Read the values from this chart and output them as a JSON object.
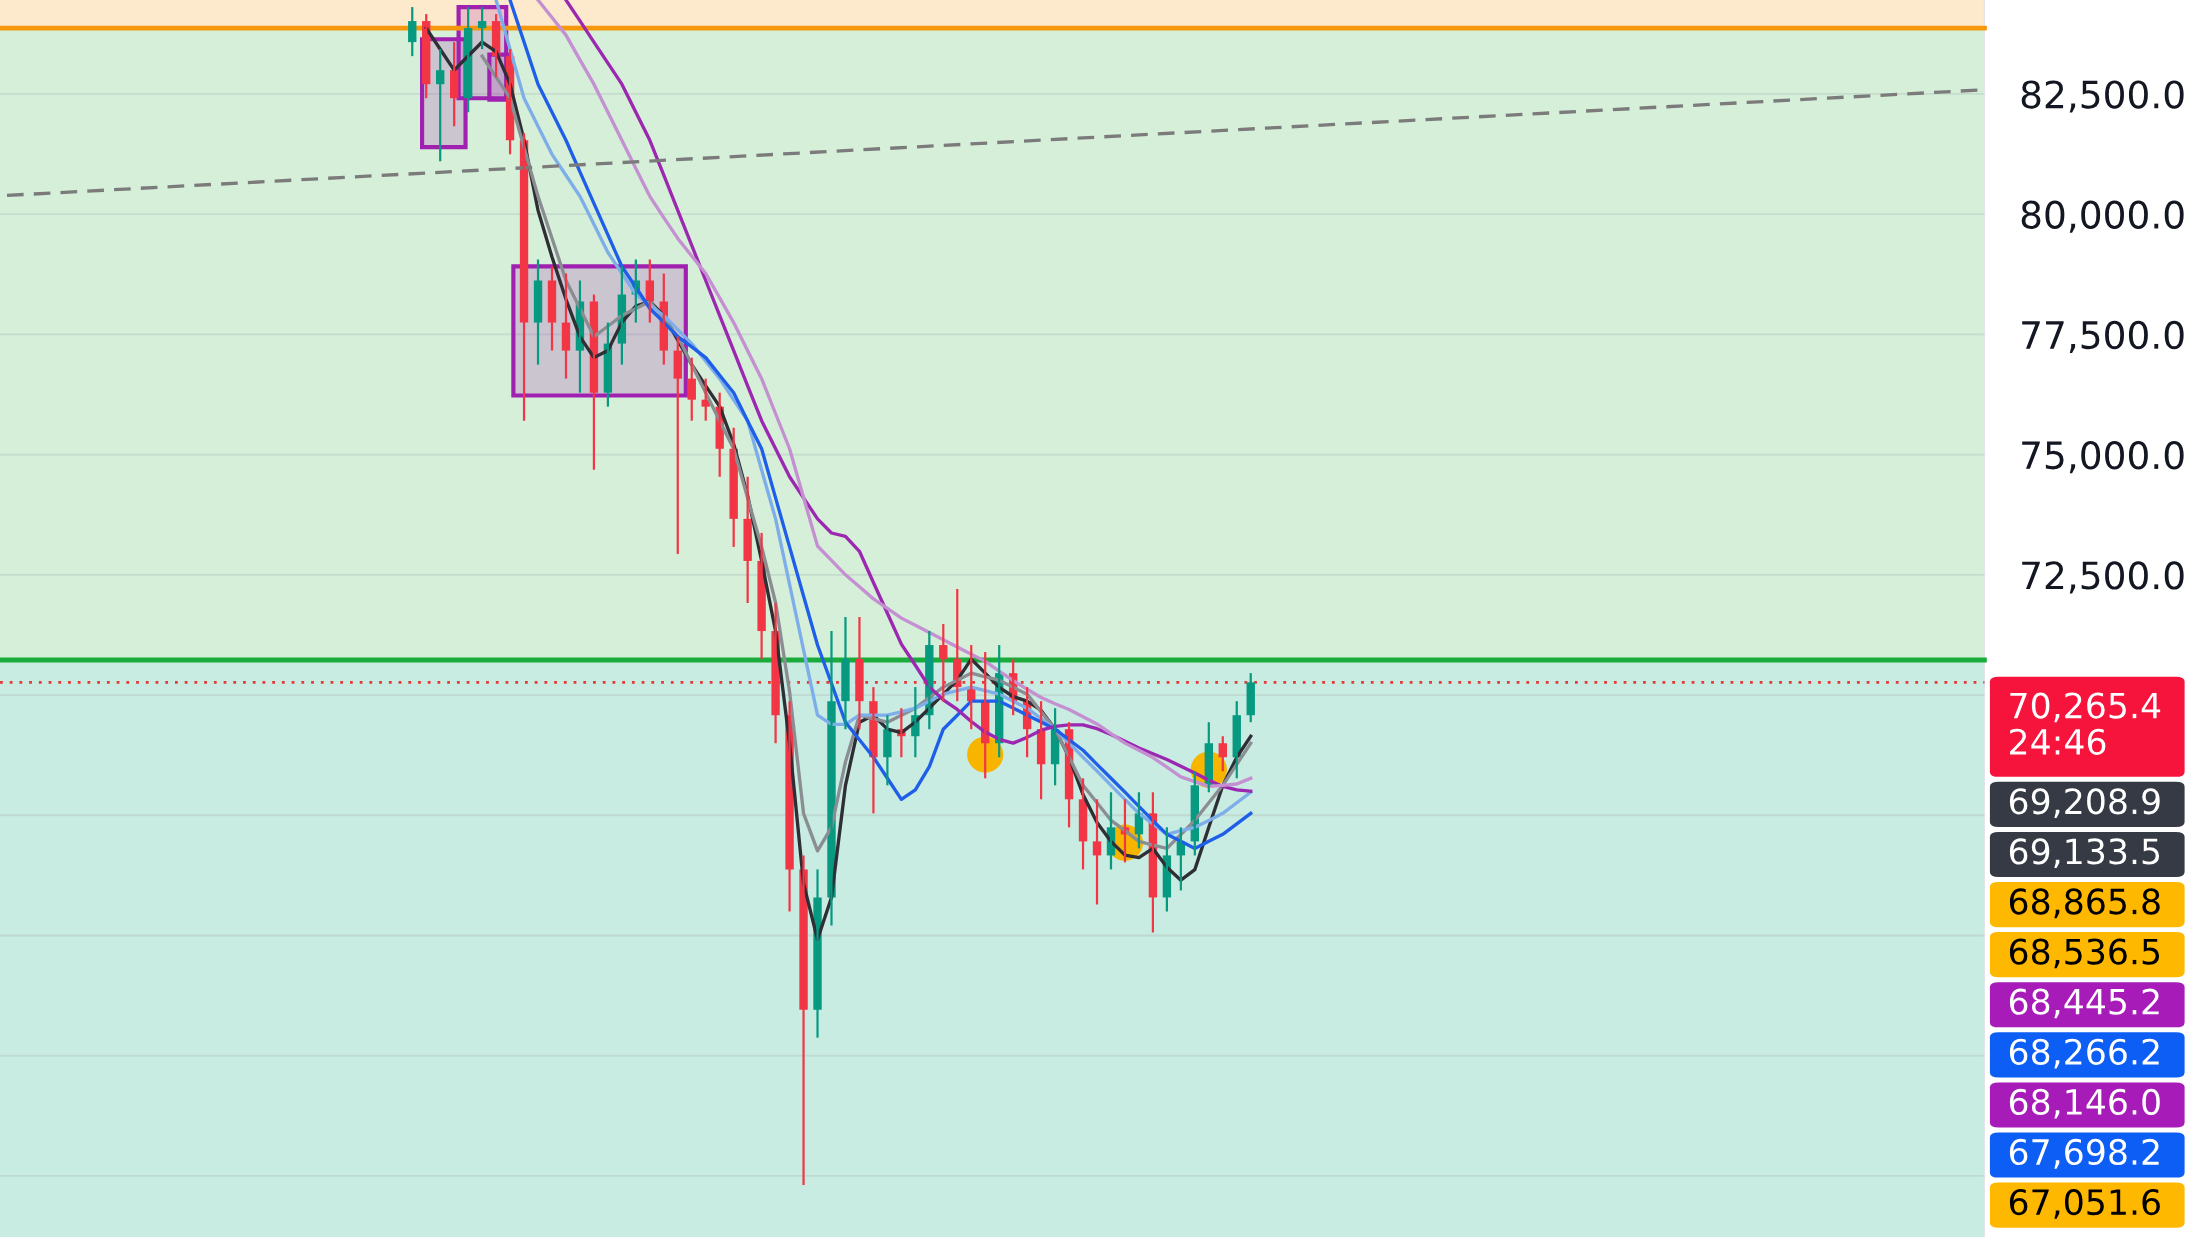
{
  "chart_data": {
    "type": "candlestick",
    "categories": [
      null,
      null,
      null,
      null,
      null,
      null,
      null,
      null,
      null,
      null,
      null,
      null,
      null,
      null,
      null,
      null,
      null,
      null,
      null,
      null,
      null,
      null,
      null,
      null,
      null,
      null,
      null,
      null,
      null,
      null,
      null,
      null,
      null,
      null,
      null,
      null,
      null,
      null,
      null,
      null,
      null,
      null,
      null,
      null,
      null,
      null,
      null,
      null,
      null,
      null,
      null,
      null,
      null,
      null,
      null,
      null,
      null,
      null,
      null,
      null,
      null,
      null,
      null,
      null,
      null,
      null,
      null,
      null,
      null,
      null,
      null,
      null,
      null,
      null,
      null,
      null,
      null,
      null,
      null,
      null,
      null,
      null,
      null,
      null,
      null,
      null,
      null,
      null,
      null,
      null,
      null,
      null,
      null,
      null,
      null,
      null,
      null,
      null,
      null,
      null,
      null,
      null,
      null,
      null,
      null,
      null,
      null,
      null,
      null,
      null,
      null,
      null,
      null,
      null,
      null,
      null,
      null,
      null,
      null,
      null,
      null,
      null,
      null,
      null,
      null,
      null,
      null,
      null,
      null,
      null,
      null,
      null,
      null,
      null,
      null,
      null,
      null,
      null,
      null,
      null,
      null,
      null
    ],
    "ohlc": [
      null,
      null,
      null,
      null,
      null,
      null,
      null,
      null,
      null,
      null,
      null,
      null,
      null,
      null,
      null,
      null,
      null,
      null,
      null,
      null,
      null,
      null,
      null,
      null,
      null,
      null,
      null,
      null,
      null,
      [
        83578,
        84307,
        83287,
        84016
      ],
      [
        84016,
        84161,
        82412,
        82703
      ],
      [
        82703,
        83433,
        81100,
        82995
      ],
      [
        82995,
        83578,
        81829,
        82412
      ],
      [
        82412,
        84307,
        82120,
        83870
      ],
      [
        83870,
        84307,
        83433,
        84016
      ],
      [
        84016,
        84161,
        82849,
        83287
      ],
      [
        83287,
        83433,
        81245,
        81537
      ],
      [
        81537,
        81683,
        75705,
        77746
      ],
      [
        77746,
        79058,
        76871,
        78621
      ],
      [
        78621,
        78913,
        77163,
        77746
      ],
      [
        77746,
        78767,
        76580,
        77163
      ],
      [
        77163,
        78621,
        76288,
        78184
      ],
      [
        78184,
        78329,
        74685,
        76288
      ],
      [
        76288,
        77746,
        75997,
        77309
      ],
      [
        77309,
        78913,
        76871,
        78329
      ],
      [
        78329,
        79058,
        77746,
        78621
      ],
      [
        78621,
        79058,
        77746,
        78184
      ],
      [
        78184,
        78767,
        76871,
        77163
      ],
      [
        77163,
        77455,
        72935,
        76580
      ],
      [
        76580,
        77017,
        75705,
        76142
      ],
      [
        76142,
        76580,
        75705,
        75997
      ],
      [
        75997,
        76288,
        74539,
        75122
      ],
      [
        75122,
        75559,
        73081,
        73664
      ],
      [
        73664,
        74539,
        71914,
        72789
      ],
      [
        72789,
        73372,
        70748,
        71331
      ],
      [
        71331,
        71914,
        68998,
        69581
      ],
      [
        69581,
        69873,
        65499,
        66374
      ],
      [
        66374,
        66665,
        59813,
        63458
      ],
      [
        63458,
        66374,
        62875,
        65791
      ],
      [
        65791,
        71331,
        65207,
        69873
      ],
      [
        69873,
        71623,
        69290,
        70748
      ],
      [
        70748,
        71623,
        69290,
        69873
      ],
      [
        69873,
        70165,
        67540,
        68707
      ],
      [
        68707,
        69581,
        68123,
        69290
      ],
      [
        69290,
        69727,
        68707,
        69144
      ],
      [
        69144,
        70165,
        68707,
        69581
      ],
      [
        69581,
        71331,
        69290,
        71040
      ],
      [
        71040,
        71477,
        69873,
        70748
      ],
      [
        70748,
        72206,
        69873,
        70165
      ],
      [
        70165,
        71040,
        69290,
        69873
      ],
      [
        69873,
        70894,
        68269,
        68998
      ],
      [
        68998,
        71040,
        68707,
        70456
      ],
      [
        70456,
        70748,
        69581,
        69873
      ],
      [
        69873,
        70165,
        68707,
        69290
      ],
      [
        69290,
        69873,
        67832,
        68561
      ],
      [
        68561,
        69727,
        68123,
        69290
      ],
      [
        69290,
        69435,
        67249,
        67832
      ],
      [
        67832,
        68269,
        66374,
        66957
      ],
      [
        66957,
        67832,
        65645,
        66665
      ],
      [
        66665,
        67978,
        66374,
        67249
      ],
      [
        67249,
        67832,
        66520,
        67103
      ],
      [
        67103,
        67978,
        66811,
        67540
      ],
      [
        67540,
        67978,
        65062,
        65791
      ],
      [
        65791,
        67249,
        65499,
        66665
      ],
      [
        66665,
        67249,
        65937,
        66957
      ],
      [
        66957,
        68415,
        66665,
        68123
      ],
      [
        68123,
        69435,
        67978,
        68998
      ],
      [
        68998,
        69144,
        68415,
        68707
      ],
      [
        68707,
        69873,
        68269,
        69581
      ],
      [
        69581,
        70456,
        69435,
        70265.4
      ],
      null,
      null,
      null,
      null,
      null,
      null,
      null,
      null,
      null,
      null,
      null,
      null,
      null,
      null,
      null,
      null,
      null,
      null,
      null,
      null,
      null,
      null,
      null,
      null,
      null,
      null,
      null,
      null,
      null,
      null,
      null,
      null,
      null,
      null,
      null,
      null,
      null,
      null,
      null,
      null,
      null,
      null,
      null,
      null,
      null,
      null,
      null,
      null,
      null,
      null,
      null,
      null
    ],
    "series": [
      {
        "type": "line",
        "color": "#2e2e35",
        "values": [
          null,
          null,
          null,
          null,
          null,
          null,
          null,
          null,
          null,
          null,
          null,
          null,
          null,
          null,
          null,
          null,
          null,
          null,
          null,
          null,
          null,
          null,
          null,
          null,
          null,
          null,
          null,
          null,
          null,
          null,
          83870,
          83430,
          82995,
          83290,
          83580,
          83380,
          82703,
          81537,
          80079,
          79110,
          78230,
          77455,
          77017,
          77163,
          77750,
          78090,
          78184,
          77892,
          77380,
          76871,
          76430,
          75997,
          75220,
          74150,
          72789,
          71331,
          68998,
          66082,
          64916,
          65791,
          68123,
          69435,
          69581,
          69290,
          69220,
          69440,
          69727,
          70020,
          70310,
          70748,
          70456,
          70160,
          69970,
          69873,
          69680,
          69290,
          68707,
          67930,
          67350,
          66957,
          66670,
          66620,
          66811,
          66420,
          66150,
          66370,
          67250,
          68120,
          68707,
          69144,
          null,
          null,
          null,
          null,
          null,
          null,
          null,
          null,
          null,
          null,
          null,
          null,
          null,
          null,
          null,
          null,
          null,
          null,
          null,
          null,
          null,
          null,
          null,
          null,
          null,
          null,
          null,
          null,
          null,
          null,
          null,
          null,
          null,
          null,
          null,
          null,
          null,
          null,
          null,
          null,
          null,
          null,
          null,
          null,
          null,
          null,
          null,
          null,
          null,
          null,
          null,
          null
        ]
      },
      {
        "type": "line",
        "color": "#8a8d92",
        "values": [
          null,
          null,
          null,
          null,
          null,
          null,
          null,
          null,
          null,
          null,
          null,
          null,
          null,
          null,
          null,
          null,
          null,
          null,
          null,
          null,
          null,
          null,
          null,
          null,
          null,
          null,
          null,
          null,
          null,
          null,
          null,
          null,
          null,
          null,
          83287,
          82850,
          82412,
          81390,
          80371,
          79500,
          78621,
          78040,
          77455,
          77670,
          77892,
          78040,
          78184,
          77820,
          77455,
          76870,
          76288,
          75700,
          75122,
          74100,
          73081,
          71920,
          70070,
          67540,
          66760,
          67250,
          68610,
          69581,
          69510,
          69435,
          69580,
          69727,
          69950,
          70165,
          70310,
          70456,
          70380,
          70310,
          70160,
          70019,
          69650,
          69290,
          68710,
          68123,
          67760,
          67395,
          67180,
          66957,
          66880,
          66811,
          67100,
          67395,
          67760,
          68123,
          68560,
          68998,
          null,
          null,
          null,
          null,
          null,
          null,
          null,
          null,
          null,
          null,
          null,
          null,
          null,
          null,
          null,
          null,
          null,
          null,
          null,
          null,
          null,
          null,
          null,
          null,
          null,
          null,
          null,
          null,
          null,
          null,
          null,
          null,
          null,
          null,
          null,
          null,
          null,
          null,
          null,
          null,
          null,
          null,
          null,
          null,
          null,
          null,
          null,
          null,
          null,
          null,
          null,
          null
        ]
      },
      {
        "type": "line",
        "color": "#7eaeea",
        "values": [
          null,
          null,
          null,
          null,
          null,
          null,
          null,
          null,
          null,
          null,
          null,
          null,
          null,
          null,
          null,
          null,
          null,
          null,
          null,
          null,
          null,
          null,
          null,
          null,
          null,
          null,
          null,
          null,
          null,
          null,
          null,
          null,
          null,
          null,
          null,
          84453,
          83430,
          82412,
          81830,
          81245,
          80810,
          80371,
          79790,
          79204,
          78770,
          78329,
          78110,
          77892,
          77600,
          77309,
          76940,
          76580,
          76140,
          75705,
          74680,
          73664,
          72300,
          70940,
          69581,
          69390,
          69390,
          69581,
          69581,
          69581,
          69650,
          69727,
          69870,
          70019,
          70090,
          70165,
          70090,
          70019,
          69870,
          69727,
          69510,
          69290,
          69000,
          68707,
          68420,
          68123,
          67830,
          67540,
          67320,
          67103,
          67180,
          67249,
          67390,
          67540,
          67760,
          67978,
          null,
          null,
          null,
          null,
          null,
          null,
          null,
          null,
          null,
          null,
          null,
          null,
          null,
          null,
          null,
          null,
          null,
          null,
          null,
          null,
          null,
          null,
          null,
          null,
          null,
          null,
          null,
          null,
          null,
          null,
          null,
          null,
          null,
          null,
          null,
          null,
          null,
          null,
          null,
          null,
          null,
          null,
          null,
          null,
          null,
          null,
          null,
          null,
          null,
          null,
          null,
          null
        ]
      },
      {
        "type": "line",
        "color": "#1e5ee8",
        "values": [
          null,
          null,
          null,
          null,
          null,
          null,
          null,
          null,
          null,
          null,
          null,
          null,
          null,
          null,
          null,
          null,
          null,
          null,
          null,
          null,
          null,
          null,
          null,
          null,
          null,
          null,
          null,
          null,
          null,
          null,
          null,
          null,
          null,
          null,
          null,
          null,
          84453,
          83580,
          82703,
          82120,
          81537,
          80880,
          80225,
          79570,
          78913,
          78480,
          78038,
          77750,
          77455,
          77240,
          77017,
          76650,
          76288,
          75700,
          75122,
          74100,
          73081,
          72060,
          71040,
          70240,
          69435,
          69070,
          68707,
          68270,
          67832,
          68030,
          68510,
          69290,
          69580,
          69873,
          69873,
          69873,
          69730,
          69581,
          69440,
          69290,
          69070,
          68852,
          68560,
          68269,
          67980,
          67686,
          67390,
          67103,
          66960,
          66811,
          66960,
          67103,
          67320,
          67540,
          null,
          null,
          null,
          null,
          null,
          null,
          null,
          null,
          null,
          null,
          null,
          null,
          null,
          null,
          null,
          null,
          null,
          null,
          null,
          null,
          null,
          null,
          null,
          null,
          null,
          null,
          null,
          null,
          null,
          null,
          null,
          null,
          null,
          null,
          null,
          null,
          null,
          null,
          null,
          null,
          null,
          null,
          null,
          null,
          null,
          null,
          null,
          null,
          null,
          null,
          null,
          null
        ]
      },
      {
        "type": "line",
        "color": "#9c27b0",
        "values": [
          null,
          null,
          null,
          null,
          null,
          null,
          null,
          null,
          null,
          null,
          null,
          null,
          null,
          null,
          null,
          null,
          null,
          null,
          null,
          null,
          null,
          null,
          null,
          null,
          null,
          null,
          null,
          null,
          null,
          null,
          null,
          null,
          null,
          null,
          null,
          null,
          null,
          null,
          null,
          null,
          84453,
          84020,
          83578,
          83140,
          82703,
          82120,
          81537,
          80810,
          80079,
          79350,
          78621,
          77890,
          77163,
          76430,
          75705,
          75120,
          74539,
          74100,
          73664,
          73370,
          73300,
          72990,
          72340,
          71700,
          71060,
          70620,
          70170,
          69900,
          69700,
          69450,
          69230,
          69080,
          69000,
          69120,
          69270,
          69350,
          69380,
          69380,
          69300,
          69180,
          69040,
          68900,
          68780,
          68660,
          68520,
          68380,
          68230,
          68100,
          68030,
          68000,
          null,
          null,
          null,
          null,
          null,
          null,
          null,
          null,
          null,
          null,
          null,
          null,
          null,
          null,
          null,
          null,
          null,
          null,
          null,
          null,
          null,
          null,
          null,
          null,
          null,
          null,
          null,
          null,
          null,
          null,
          null,
          null,
          null,
          null,
          null,
          null,
          null,
          null,
          null,
          null,
          null,
          null,
          null,
          null,
          null,
          null,
          null,
          null,
          null,
          null,
          null,
          null
        ]
      },
      {
        "type": "line",
        "color": "#c490d1",
        "values": [
          null,
          null,
          null,
          null,
          null,
          null,
          null,
          null,
          null,
          null,
          null,
          null,
          null,
          null,
          null,
          null,
          null,
          null,
          null,
          null,
          null,
          null,
          null,
          null,
          null,
          null,
          null,
          null,
          null,
          null,
          null,
          null,
          null,
          null,
          null,
          null,
          null,
          null,
          84453,
          84090,
          83724,
          83210,
          82703,
          82120,
          81537,
          80950,
          80371,
          79930,
          79496,
          79130,
          78767,
          78260,
          77746,
          77160,
          76580,
          75850,
          75122,
          74110,
          73100,
          72800,
          72500,
          72250,
          72000,
          71800,
          71600,
          71450,
          71300,
          71150,
          71000,
          70850,
          70700,
          70500,
          70300,
          70120,
          69950,
          69820,
          69700,
          69550,
          69400,
          69200,
          69000,
          68850,
          68700,
          68500,
          68300,
          68200,
          68100,
          68120,
          68150,
          68270,
          null,
          null,
          null,
          null,
          null,
          null,
          null,
          null,
          null,
          null,
          null,
          null,
          null,
          null,
          null,
          null,
          null,
          null,
          null,
          null,
          null,
          null,
          null,
          null,
          null,
          null,
          null,
          null,
          null,
          null,
          null,
          null,
          null,
          null,
          null,
          null,
          null,
          null,
          null,
          null,
          null,
          null,
          null,
          null,
          null,
          null,
          null,
          null,
          null,
          null,
          null,
          null
        ]
      },
      {
        "type": "line",
        "color": "#7b7b7b",
        "line_style": "dashed",
        "values": [
          80390,
          null,
          null,
          null,
          null,
          null,
          null,
          null,
          null,
          null,
          null,
          null,
          null,
          null,
          null,
          null,
          null,
          null,
          null,
          null,
          null,
          null,
          null,
          null,
          null,
          null,
          null,
          null,
          null,
          null,
          null,
          null,
          null,
          null,
          null,
          null,
          null,
          null,
          null,
          null,
          null,
          null,
          null,
          null,
          null,
          null,
          null,
          null,
          null,
          null,
          null,
          null,
          null,
          null,
          null,
          null,
          null,
          null,
          null,
          null,
          null,
          null,
          null,
          null,
          null,
          null,
          null,
          null,
          null,
          null,
          null,
          null,
          null,
          null,
          null,
          null,
          null,
          null,
          null,
          null,
          null,
          null,
          null,
          null,
          null,
          null,
          null,
          null,
          null,
          null,
          null,
          null,
          null,
          null,
          null,
          null,
          null,
          null,
          null,
          null,
          null,
          null,
          null,
          null,
          null,
          null,
          null,
          null,
          null,
          null,
          null,
          null,
          null,
          null,
          null,
          null,
          null,
          null,
          null,
          null,
          null,
          null,
          null,
          null,
          null,
          null,
          null,
          null,
          null,
          null,
          null,
          null,
          null,
          null,
          null,
          null,
          null,
          null,
          null,
          null,
          null,
          82580
        ]
      },
      {
        "type": "scatter",
        "color": "#f7b500",
        "marker": "circle",
        "values": [
          null,
          null,
          null,
          null,
          null,
          null,
          null,
          null,
          null,
          null,
          null,
          null,
          null,
          null,
          null,
          null,
          null,
          null,
          null,
          null,
          null,
          null,
          null,
          null,
          null,
          null,
          null,
          null,
          null,
          null,
          null,
          null,
          null,
          null,
          null,
          null,
          null,
          null,
          null,
          null,
          null,
          null,
          null,
          null,
          null,
          null,
          null,
          null,
          null,
          null,
          null,
          null,
          null,
          null,
          null,
          null,
          null,
          null,
          null,
          null,
          null,
          null,
          null,
          null,
          null,
          null,
          null,
          null,
          null,
          null,
          68763,
          null,
          null,
          null,
          null,
          null,
          null,
          null,
          null,
          null,
          66930,
          null,
          null,
          null,
          null,
          null,
          68448,
          null,
          null,
          null,
          null,
          null,
          null,
          null,
          null,
          null,
          null,
          null,
          null,
          null,
          null,
          null,
          null,
          null,
          null,
          null,
          null,
          null,
          null,
          null,
          null,
          null,
          null,
          null,
          null,
          null,
          null,
          null,
          null,
          null,
          null,
          null,
          null,
          null,
          null,
          null,
          null,
          null,
          null,
          null,
          null,
          null,
          null,
          null,
          null,
          null,
          null,
          null,
          null,
          null,
          null,
          null
        ]
      }
    ],
    "ref_lines": [
      {
        "axis": "y",
        "value": 83870,
        "color": "#f5980c"
      },
      {
        "axis": "y",
        "value": 70730,
        "color": "#1aab3d"
      },
      {
        "axis": "y",
        "value": 70265.4,
        "color": "#e53935",
        "line_style": "dotted"
      }
    ],
    "bands": [
      {
        "axis": "y",
        "from": 83870,
        "to": 84454,
        "color": "#fde9cc"
      },
      {
        "axis": "y",
        "from": 70730,
        "to": 83870,
        "color": "#d6efd9"
      },
      {
        "axis": "y",
        "from": 58730,
        "to": 70730,
        "color": "#c8ebe2"
      }
    ],
    "annotations": [
      "70,265.4\n24:46",
      "69,208.9",
      "69,133.5",
      "68,865.8",
      "68,536.5",
      "68,445.2",
      "68,266.2",
      "68,146.0",
      "67,698.2",
      "67,051.6"
    ],
    "ylim": [
      58730,
      84454
    ],
    "yticks": [
      {
        "value": 60000,
        "label": null
      },
      {
        "value": 62500,
        "label": null
      },
      {
        "value": 65000,
        "label": null
      },
      {
        "value": 67500,
        "label": null
      },
      {
        "value": 70000,
        "label": null
      },
      {
        "value": 72500,
        "label": "72,500.0"
      },
      {
        "value": 75000,
        "label": "75,000.0"
      },
      {
        "value": 77500,
        "label": "77,500.0"
      },
      {
        "value": 80000,
        "label": "80,000.0"
      },
      {
        "value": 82500,
        "label": "82,500.0"
      }
    ],
    "grid": "y",
    "tick_labels": "y"
  }
}
